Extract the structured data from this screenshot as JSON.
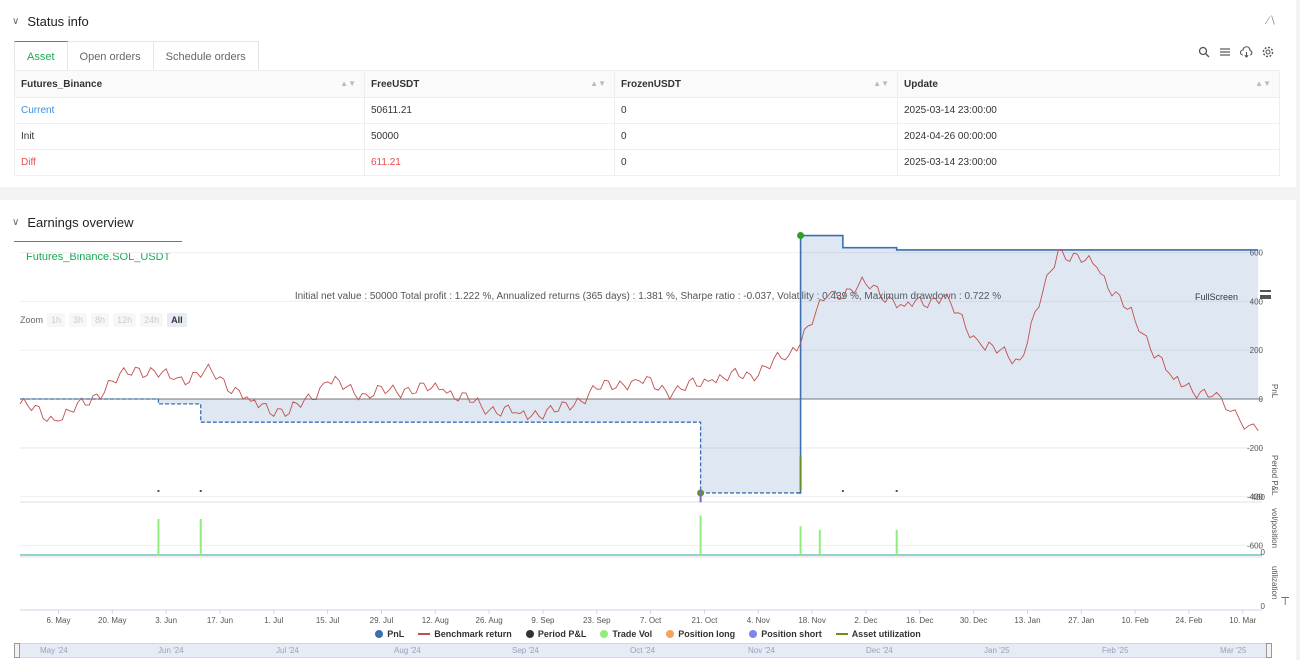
{
  "status": {
    "title": "Status info",
    "collapse_icon": "collapse-icon",
    "tabs": [
      {
        "label": "Asset",
        "active": true
      },
      {
        "label": "Open orders",
        "active": false
      },
      {
        "label": "Schedule orders",
        "active": false
      }
    ],
    "tool_icons": [
      "search-icon",
      "list-icon",
      "cloud-download-icon",
      "gear-icon"
    ],
    "table": {
      "headers": [
        "Futures_Binance",
        "FreeUSDT",
        "FrozenUSDT",
        "Update"
      ],
      "rows": [
        [
          "Current",
          "50611.21",
          "0",
          "2025-03-14 23:00:00"
        ],
        [
          "Init",
          "50000",
          "0",
          "2024-04-26 00:00:00"
        ],
        [
          "Diff",
          "611.21",
          "0",
          "2025-03-14 23:00:00"
        ]
      ]
    }
  },
  "earnings": {
    "title": "Earnings overview",
    "tab_label": "Futures_Binance.SOL_USDT",
    "summary": "Initial net value : 50000 Total profit : 1.222 %, Annualized returns (365 days) : 1.381 %, Sharpe ratio : -0.037, Volatility : 0.439 %, Maximum drawdown : 0.722 %",
    "fullscreen_label": "FullScreen",
    "zoom_label": "Zoom",
    "zoom_options": [
      "1h",
      "3h",
      "8h",
      "12h",
      "24h",
      "All"
    ],
    "zoom_selected": "All",
    "legend": [
      {
        "label": "PnL",
        "color": "#3b6fb0",
        "shape": "dot"
      },
      {
        "label": "Benchmark return",
        "color": "#c0504d",
        "shape": "line"
      },
      {
        "label": "Period P&L",
        "color": "#333333",
        "shape": "dot"
      },
      {
        "label": "Trade Vol",
        "color": "#90ed7d",
        "shape": "dot"
      },
      {
        "label": "Position long",
        "color": "#f7a35c",
        "shape": "dot"
      },
      {
        "label": "Position short",
        "color": "#8085e9",
        "shape": "dot"
      },
      {
        "label": "Asset utilization",
        "color": "#6b8e23",
        "shape": "line"
      }
    ],
    "navigator_labels": [
      "May '24",
      "Jun '24",
      "Jul '24",
      "Aug '24",
      "Sep '24",
      "Oct '24",
      "Nov '24",
      "Dec '24",
      "Jan '25",
      "Feb '25",
      "Mar '25"
    ]
  },
  "chart_data": {
    "type": "line",
    "x_tick_labels": [
      "6. May",
      "20. May",
      "3. Jun",
      "17. Jun",
      "1. Jul",
      "15. Jul",
      "29. Jul",
      "12. Aug",
      "26. Aug",
      "9. Sep",
      "23. Sep",
      "7. Oct",
      "21. Oct",
      "4. Nov",
      "18. Nov",
      "2. Dec",
      "16. Dec",
      "30. Dec",
      "13. Jan",
      "27. Jan",
      "10. Feb",
      "24. Feb",
      "10. Mar"
    ],
    "pnl_axis": {
      "label": "PnL",
      "ticks": [
        600,
        400,
        200,
        0,
        -200,
        -400,
        -600
      ],
      "ylim": [
        -600,
        600
      ]
    },
    "period_axis": {
      "label": "Period P&L",
      "ticks": [
        -400
      ]
    },
    "vol_axis": {
      "label": "vol/position",
      "ticks": [
        0
      ]
    },
    "util_axis": {
      "label": "utilization",
      "ticks": [
        0
      ]
    },
    "series": [
      {
        "name": "PnL",
        "color": "#3b6fb0",
        "x": [
          "2024-04-26",
          "2024-06-01",
          "2024-06-01",
          "2024-06-12",
          "2024-06-12",
          "2024-10-20",
          "2024-10-20",
          "2024-11-14",
          "2024-11-15",
          "2024-11-15",
          "2024-11-26",
          "2024-11-26",
          "2024-12-10",
          "2024-12-10",
          "2025-03-14"
        ],
        "values": [
          0,
          0,
          -20,
          -20,
          -95,
          -95,
          -385,
          -385,
          -385,
          670,
          670,
          620,
          620,
          611,
          611
        ]
      },
      {
        "name": "Benchmark return",
        "color": "#c0504d",
        "x": [
          "2024-04-26",
          "2024-05-06",
          "2024-05-16",
          "2024-05-26",
          "2024-06-05",
          "2024-06-15",
          "2024-06-25",
          "2024-07-05",
          "2024-07-15",
          "2024-07-25",
          "2024-08-04",
          "2024-08-14",
          "2024-08-24",
          "2024-09-03",
          "2024-09-13",
          "2024-09-23",
          "2024-10-03",
          "2024-10-13",
          "2024-10-23",
          "2024-11-02",
          "2024-11-12",
          "2024-11-22",
          "2024-12-02",
          "2024-12-12",
          "2024-12-22",
          "2025-01-01",
          "2025-01-11",
          "2025-01-21",
          "2025-01-31",
          "2025-02-10",
          "2025-02-20",
          "2025-03-02",
          "2025-03-14"
        ],
        "values": [
          -20,
          -90,
          20,
          130,
          80,
          110,
          -10,
          -60,
          70,
          20,
          40,
          40,
          -30,
          -60,
          -50,
          40,
          80,
          30,
          80,
          100,
          180,
          420,
          470,
          380,
          420,
          220,
          160,
          610,
          540,
          320,
          80,
          10,
          -130
        ]
      },
      {
        "name": "Period P&L",
        "color": "#333333",
        "x": [
          "2024-06-01",
          "2024-06-12",
          "2024-10-20",
          "2024-11-15",
          "2024-11-26",
          "2024-12-10"
        ],
        "values": [
          -5,
          -5,
          -385,
          1055,
          -10,
          -5
        ]
      },
      {
        "name": "Trade Vol",
        "color": "#90ed7d",
        "x": [
          "2024-06-01",
          "2024-06-12",
          "2024-10-20",
          "2024-11-15",
          "2024-11-20",
          "2024-12-10"
        ],
        "values": [
          1,
          1,
          1.1,
          0.8,
          0.7,
          0.7
        ]
      }
    ],
    "grid": true,
    "legend_position": "bottom"
  }
}
